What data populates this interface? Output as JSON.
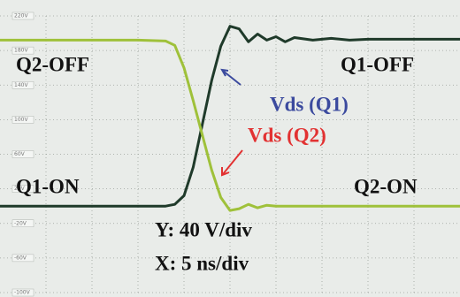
{
  "chart_data": {
    "type": "line",
    "x": [
      0,
      5,
      10,
      15,
      18,
      19,
      20,
      21,
      22,
      23,
      24,
      25,
      26,
      27,
      28,
      29,
      30,
      31,
      32,
      34,
      36,
      38,
      40,
      45,
      50
    ],
    "series": [
      {
        "name": "Vds (Q1)",
        "color": "#1f3a2a",
        "values": [
          0,
          0,
          0,
          0,
          0,
          2,
          12,
          45,
          95,
          145,
          185,
          208,
          205,
          190,
          199,
          192,
          196,
          190,
          195,
          192,
          194,
          192,
          193,
          193,
          193
        ]
      },
      {
        "name": "Vds (Q2)",
        "color": "#9fc13a",
        "values": [
          192,
          192,
          192,
          192,
          191,
          186,
          160,
          122,
          82,
          42,
          10,
          -5,
          -3,
          2,
          -2,
          1,
          0,
          0,
          0,
          0,
          0,
          0,
          0,
          0,
          0
        ]
      }
    ],
    "xlim": [
      0,
      50
    ],
    "xticks": [
      5,
      10,
      15,
      20,
      25,
      30,
      35,
      40,
      45
    ],
    "ylim": [
      -100,
      220
    ],
    "yticks": [
      {
        "value": -100,
        "label": "-100V"
      },
      {
        "value": -60,
        "label": "-60V"
      },
      {
        "value": -20,
        "label": "-20V"
      },
      {
        "value": 20,
        "label": "20V"
      },
      {
        "value": 60,
        "label": "60V"
      },
      {
        "value": 100,
        "label": "100V"
      },
      {
        "value": 140,
        "label": "140V"
      },
      {
        "value": 180,
        "label": "180V"
      },
      {
        "value": 220,
        "label": "220V"
      }
    ],
    "grid": true,
    "annotations": [
      {
        "text": "Q2-OFF",
        "color": "#111111"
      },
      {
        "text": "Q1-OFF",
        "color": "#111111"
      },
      {
        "text": "Vds (Q1)",
        "color": "#3b4a9e"
      },
      {
        "text": "Vds (Q2)",
        "color": "#e23232"
      },
      {
        "text": "Q1-ON",
        "color": "#111111"
      },
      {
        "text": "Q2-ON",
        "color": "#111111"
      },
      {
        "text": "Y: 40 V/div",
        "color": "#111111"
      },
      {
        "text": "X: 5 ns/div",
        "color": "#111111"
      }
    ]
  }
}
